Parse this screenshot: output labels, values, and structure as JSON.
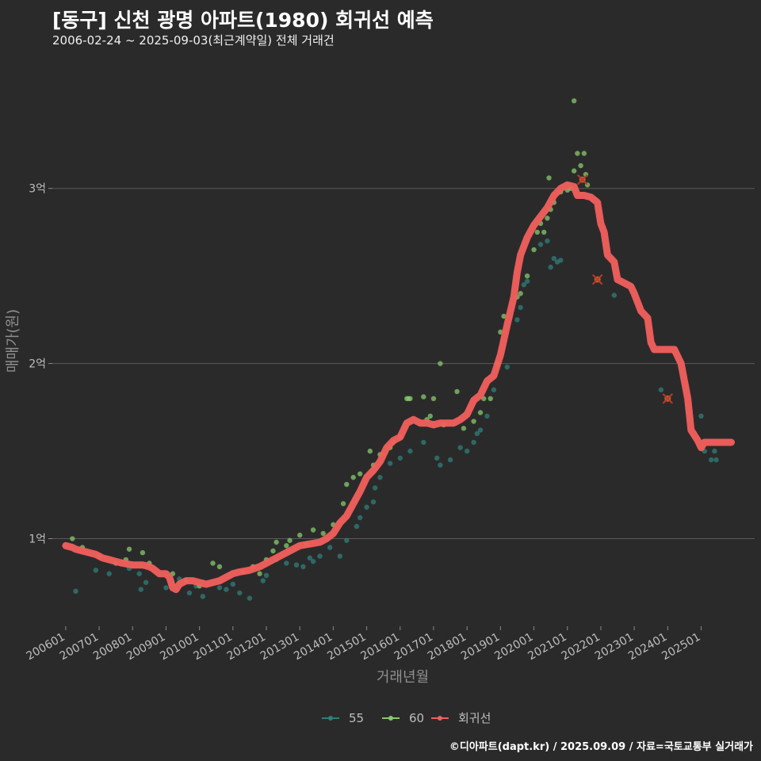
{
  "title": "[동구] 신천 광명 아파트(1980) 회귀선 예측",
  "subtitle": "2006-02-24 ~ 2025-09-03(최근계약일) 전체 거래건",
  "caption": "©디아파트(dapt.kr) / 2025.09.09 / 자료=국토교통부 실거래가",
  "colors": {
    "background": "#2b2a2b",
    "grid": "#5a5a5a",
    "series_55": "#2f7f7a",
    "series_60": "#86c96b",
    "regression": "#f25f5c",
    "outlier": "#c0392b"
  },
  "chart_data": {
    "type": "scatter",
    "title": "[동구] 신천 광명 아파트(1980) 회귀선 예측",
    "xlabel": "거래년월",
    "ylabel": "매매가(원)",
    "x_unit": "year (decimal)",
    "y_unit": "억 원",
    "xlim": [
      2005.6,
      2026.6
    ],
    "ylim": [
      0.5,
      3.75
    ],
    "x_ticks": [
      {
        "x": 2006.0,
        "label": "200601"
      },
      {
        "x": 2007.0,
        "label": "200701"
      },
      {
        "x": 2008.0,
        "label": "200801"
      },
      {
        "x": 2009.0,
        "label": "200901"
      },
      {
        "x": 2010.0,
        "label": "201001"
      },
      {
        "x": 2011.0,
        "label": "201101"
      },
      {
        "x": 2012.0,
        "label": "201201"
      },
      {
        "x": 2013.0,
        "label": "201301"
      },
      {
        "x": 2014.0,
        "label": "201401"
      },
      {
        "x": 2015.0,
        "label": "201501"
      },
      {
        "x": 2016.0,
        "label": "201601"
      },
      {
        "x": 2017.0,
        "label": "201701"
      },
      {
        "x": 2018.0,
        "label": "201801"
      },
      {
        "x": 2019.0,
        "label": "201901"
      },
      {
        "x": 2020.0,
        "label": "202001"
      },
      {
        "x": 2021.0,
        "label": "202101"
      },
      {
        "x": 2022.0,
        "label": "202201"
      },
      {
        "x": 2023.0,
        "label": "202301"
      },
      {
        "x": 2024.0,
        "label": "202401"
      },
      {
        "x": 2025.0,
        "label": "202501"
      }
    ],
    "y_ticks": [
      {
        "y": 1,
        "label": "1억"
      },
      {
        "y": 2,
        "label": "2억"
      },
      {
        "y": 3,
        "label": "3억"
      }
    ],
    "legend": [
      {
        "name": "55",
        "kind": "point-line"
      },
      {
        "name": "60",
        "kind": "point-line"
      },
      {
        "name": "회귀선",
        "kind": "point-line"
      }
    ],
    "legend_position": "bottom",
    "series": [
      {
        "name": "55",
        "points": [
          [
            2006.3,
            0.7
          ],
          [
            2006.9,
            0.82
          ],
          [
            2007.3,
            0.8
          ],
          [
            2007.9,
            0.83
          ],
          [
            2008.2,
            0.8
          ],
          [
            2008.25,
            0.71
          ],
          [
            2008.4,
            0.75
          ],
          [
            2009.0,
            0.72
          ],
          [
            2009.4,
            0.77
          ],
          [
            2009.7,
            0.69
          ],
          [
            2009.9,
            0.73
          ],
          [
            2010.1,
            0.67
          ],
          [
            2010.6,
            0.72
          ],
          [
            2010.8,
            0.71
          ],
          [
            2011.0,
            0.74
          ],
          [
            2011.2,
            0.69
          ],
          [
            2011.5,
            0.66
          ],
          [
            2011.9,
            0.76
          ],
          [
            2012.0,
            0.79
          ],
          [
            2012.3,
            0.88
          ],
          [
            2012.6,
            0.86
          ],
          [
            2012.9,
            0.85
          ],
          [
            2013.1,
            0.84
          ],
          [
            2013.3,
            0.89
          ],
          [
            2013.4,
            0.87
          ],
          [
            2013.6,
            0.9
          ],
          [
            2013.9,
            0.95
          ],
          [
            2014.2,
            0.9
          ],
          [
            2014.4,
            0.99
          ],
          [
            2014.7,
            1.07
          ],
          [
            2014.8,
            1.12
          ],
          [
            2015.0,
            1.18
          ],
          [
            2015.2,
            1.21
          ],
          [
            2015.25,
            1.29
          ],
          [
            2015.4,
            1.35
          ],
          [
            2015.7,
            1.43
          ],
          [
            2016.0,
            1.46
          ],
          [
            2016.3,
            1.5
          ],
          [
            2016.7,
            1.55
          ],
          [
            2017.1,
            1.46
          ],
          [
            2017.2,
            1.42
          ],
          [
            2017.5,
            1.45
          ],
          [
            2017.8,
            1.52
          ],
          [
            2018.0,
            1.5
          ],
          [
            2018.2,
            1.55
          ],
          [
            2018.3,
            1.6
          ],
          [
            2018.4,
            1.62
          ],
          [
            2018.6,
            1.7
          ],
          [
            2018.8,
            1.85
          ],
          [
            2019.2,
            1.98
          ],
          [
            2019.5,
            2.25
          ],
          [
            2019.6,
            2.32
          ],
          [
            2019.7,
            2.45
          ],
          [
            2019.8,
            2.47
          ],
          [
            2020.2,
            2.68
          ],
          [
            2020.4,
            2.7
          ],
          [
            2020.5,
            2.55
          ],
          [
            2020.6,
            2.6
          ],
          [
            2020.7,
            2.58
          ],
          [
            2020.8,
            2.59
          ],
          [
            2022.4,
            2.39
          ],
          [
            2023.8,
            1.85
          ],
          [
            2025.0,
            1.7
          ],
          [
            2025.1,
            1.5
          ],
          [
            2025.3,
            1.45
          ],
          [
            2025.4,
            1.5
          ],
          [
            2025.45,
            1.45
          ]
        ]
      },
      {
        "name": "60",
        "points": [
          [
            2006.2,
            1.0
          ],
          [
            2006.5,
            0.95
          ],
          [
            2007.0,
            0.9
          ],
          [
            2007.5,
            0.86
          ],
          [
            2007.8,
            0.88
          ],
          [
            2007.9,
            0.94
          ],
          [
            2008.3,
            0.92
          ],
          [
            2008.5,
            0.86
          ],
          [
            2009.2,
            0.8
          ],
          [
            2009.6,
            0.76
          ],
          [
            2010.0,
            0.73
          ],
          [
            2010.4,
            0.86
          ],
          [
            2010.6,
            0.84
          ],
          [
            2011.3,
            0.81
          ],
          [
            2011.6,
            0.84
          ],
          [
            2011.8,
            0.8
          ],
          [
            2012.0,
            0.88
          ],
          [
            2012.2,
            0.93
          ],
          [
            2012.3,
            0.98
          ],
          [
            2012.6,
            0.96
          ],
          [
            2012.7,
            0.99
          ],
          [
            2013.0,
            1.02
          ],
          [
            2013.2,
            0.97
          ],
          [
            2013.4,
            1.05
          ],
          [
            2013.7,
            1.03
          ],
          [
            2014.0,
            1.08
          ],
          [
            2014.3,
            1.2
          ],
          [
            2014.4,
            1.31
          ],
          [
            2014.6,
            1.35
          ],
          [
            2014.8,
            1.37
          ],
          [
            2015.1,
            1.5
          ],
          [
            2015.2,
            1.42
          ],
          [
            2015.4,
            1.48
          ],
          [
            2015.7,
            1.52
          ],
          [
            2015.8,
            1.55
          ],
          [
            2016.0,
            1.58
          ],
          [
            2016.2,
            1.8
          ],
          [
            2016.25,
            1.8
          ],
          [
            2016.3,
            1.8
          ],
          [
            2016.7,
            1.81
          ],
          [
            2016.8,
            1.68
          ],
          [
            2016.9,
            1.7
          ],
          [
            2017.0,
            1.8
          ],
          [
            2017.2,
            2.0
          ],
          [
            2017.3,
            1.65
          ],
          [
            2017.7,
            1.84
          ],
          [
            2017.9,
            1.63
          ],
          [
            2018.2,
            1.67
          ],
          [
            2018.4,
            1.72
          ],
          [
            2018.5,
            1.8
          ],
          [
            2018.7,
            1.8
          ],
          [
            2018.9,
            2.0
          ],
          [
            2019.0,
            2.18
          ],
          [
            2019.1,
            2.27
          ],
          [
            2019.5,
            2.38
          ],
          [
            2019.6,
            2.4
          ],
          [
            2019.8,
            2.5
          ],
          [
            2020.0,
            2.65
          ],
          [
            2020.1,
            2.75
          ],
          [
            2020.2,
            2.8
          ],
          [
            2020.3,
            2.75
          ],
          [
            2020.4,
            2.83
          ],
          [
            2020.5,
            2.88
          ],
          [
            2020.6,
            2.92
          ],
          [
            2020.8,
            2.98
          ],
          [
            2021.0,
            2.99
          ],
          [
            2021.1,
            3.0
          ],
          [
            2021.2,
            3.1
          ],
          [
            2021.3,
            3.2
          ],
          [
            2021.5,
            3.2
          ],
          [
            2021.6,
            3.02
          ],
          [
            2021.4,
            3.13
          ],
          [
            2021.55,
            3.08
          ],
          [
            2020.45,
            3.06
          ],
          [
            2021.2,
            3.5
          ]
        ]
      },
      {
        "name": "회귀선",
        "points": [
          [
            2006.0,
            0.96
          ],
          [
            2006.2,
            0.95
          ],
          [
            2006.3,
            0.94
          ],
          [
            2006.5,
            0.93
          ],
          [
            2006.7,
            0.92
          ],
          [
            2006.9,
            0.91
          ],
          [
            2007.0,
            0.9
          ],
          [
            2007.1,
            0.89
          ],
          [
            2007.3,
            0.88
          ],
          [
            2007.5,
            0.87
          ],
          [
            2007.7,
            0.86
          ],
          [
            2008.0,
            0.85
          ],
          [
            2008.3,
            0.85
          ],
          [
            2008.5,
            0.84
          ],
          [
            2008.6,
            0.83
          ],
          [
            2008.8,
            0.8
          ],
          [
            2009.0,
            0.8
          ],
          [
            2009.1,
            0.78
          ],
          [
            2009.2,
            0.72
          ],
          [
            2009.3,
            0.71
          ],
          [
            2009.4,
            0.74
          ],
          [
            2009.6,
            0.76
          ],
          [
            2009.8,
            0.76
          ],
          [
            2010.0,
            0.75
          ],
          [
            2010.2,
            0.74
          ],
          [
            2010.4,
            0.75
          ],
          [
            2010.6,
            0.76
          ],
          [
            2010.8,
            0.78
          ],
          [
            2011.0,
            0.8
          ],
          [
            2011.2,
            0.81
          ],
          [
            2011.5,
            0.82
          ],
          [
            2011.8,
            0.84
          ],
          [
            2012.0,
            0.86
          ],
          [
            2012.3,
            0.89
          ],
          [
            2012.5,
            0.91
          ],
          [
            2012.8,
            0.94
          ],
          [
            2013.0,
            0.96
          ],
          [
            2013.3,
            0.97
          ],
          [
            2013.6,
            0.98
          ],
          [
            2013.8,
            1.0
          ],
          [
            2014.0,
            1.03
          ],
          [
            2014.2,
            1.09
          ],
          [
            2014.4,
            1.13
          ],
          [
            2014.6,
            1.2
          ],
          [
            2014.8,
            1.27
          ],
          [
            2015.0,
            1.35
          ],
          [
            2015.2,
            1.39
          ],
          [
            2015.4,
            1.44
          ],
          [
            2015.6,
            1.52
          ],
          [
            2015.8,
            1.56
          ],
          [
            2016.0,
            1.58
          ],
          [
            2016.2,
            1.66
          ],
          [
            2016.4,
            1.68
          ],
          [
            2016.6,
            1.66
          ],
          [
            2016.8,
            1.66
          ],
          [
            2017.0,
            1.65
          ],
          [
            2017.2,
            1.66
          ],
          [
            2017.4,
            1.66
          ],
          [
            2017.6,
            1.66
          ],
          [
            2017.8,
            1.68
          ],
          [
            2018.0,
            1.71
          ],
          [
            2018.2,
            1.79
          ],
          [
            2018.4,
            1.82
          ],
          [
            2018.6,
            1.9
          ],
          [
            2018.8,
            1.93
          ],
          [
            2019.0,
            2.05
          ],
          [
            2019.2,
            2.22
          ],
          [
            2019.4,
            2.38
          ],
          [
            2019.5,
            2.52
          ],
          [
            2019.6,
            2.62
          ],
          [
            2019.8,
            2.72
          ],
          [
            2020.0,
            2.79
          ],
          [
            2020.2,
            2.84
          ],
          [
            2020.4,
            2.89
          ],
          [
            2020.6,
            2.96
          ],
          [
            2020.8,
            3.0
          ],
          [
            2021.0,
            3.02
          ],
          [
            2021.2,
            3.01
          ],
          [
            2021.3,
            2.96
          ],
          [
            2021.5,
            2.96
          ],
          [
            2021.7,
            2.95
          ],
          [
            2021.9,
            2.92
          ],
          [
            2022.0,
            2.8
          ],
          [
            2022.1,
            2.75
          ],
          [
            2022.2,
            2.62
          ],
          [
            2022.4,
            2.58
          ],
          [
            2022.5,
            2.48
          ],
          [
            2022.7,
            2.46
          ],
          [
            2022.9,
            2.44
          ],
          [
            2023.0,
            2.4
          ],
          [
            2023.2,
            2.3
          ],
          [
            2023.4,
            2.26
          ],
          [
            2023.5,
            2.12
          ],
          [
            2023.6,
            2.08
          ],
          [
            2023.8,
            2.08
          ],
          [
            2024.0,
            2.08
          ],
          [
            2024.2,
            2.08
          ],
          [
            2024.4,
            2.0
          ],
          [
            2024.5,
            1.9
          ],
          [
            2024.6,
            1.8
          ],
          [
            2024.7,
            1.62
          ],
          [
            2024.9,
            1.56
          ],
          [
            2025.0,
            1.52
          ],
          [
            2025.1,
            1.55
          ],
          [
            2025.3,
            1.55
          ],
          [
            2025.6,
            1.55
          ],
          [
            2025.9,
            1.55
          ]
        ]
      }
    ],
    "outliers": [
      [
        2021.45,
        3.05
      ],
      [
        2021.9,
        2.48
      ],
      [
        2024.0,
        1.8
      ]
    ]
  }
}
